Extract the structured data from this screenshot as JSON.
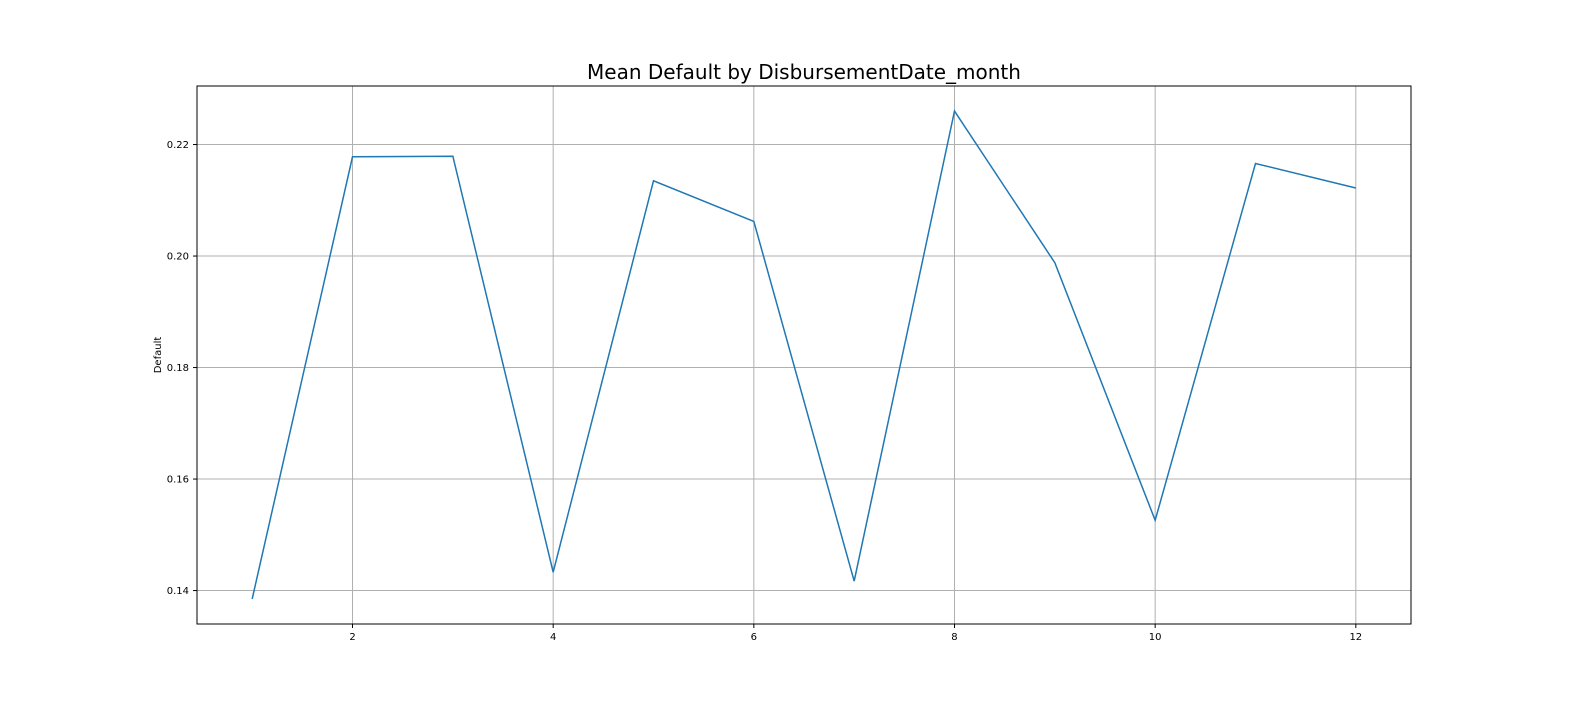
{
  "chart_data": {
    "type": "line",
    "title": "Mean Default by DisbursementDate_month",
    "xlabel": "",
    "ylabel": "Default",
    "x": [
      1,
      2,
      3,
      4,
      5,
      6,
      7,
      8,
      9,
      10,
      11,
      12
    ],
    "series": [
      {
        "values": [
          0.1385,
          0.2178,
          0.2179,
          0.1433,
          0.2135,
          0.2062,
          0.1417,
          0.226,
          0.1988,
          0.1526,
          0.2166,
          0.2122
        ],
        "color": "#1f77b4"
      }
    ],
    "xlim": [
      0.45,
      12.55
    ],
    "ylim": [
      0.134,
      0.2305
    ],
    "xticks": [
      2,
      4,
      6,
      8,
      10,
      12
    ],
    "xtick_labels": [
      "2",
      "4",
      "6",
      "8",
      "10",
      "12"
    ],
    "yticks": [
      0.14,
      0.16,
      0.18,
      0.2,
      0.22
    ],
    "ytick_labels": [
      "0.14",
      "0.16",
      "0.18",
      "0.20",
      "0.22"
    ],
    "grid": true,
    "grid_color": "#b0b0b0",
    "legend": "none"
  }
}
